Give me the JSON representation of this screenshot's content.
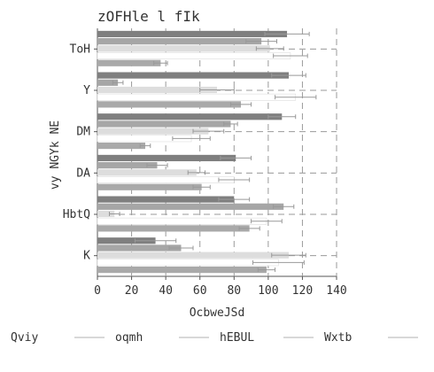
{
  "chart_data": {
    "type": "bar",
    "orientation": "horizontal",
    "title": "zOFHle l fIk",
    "xlabel": "OcbweJSd",
    "ylabel": "vy NGYk NE",
    "xlim": [
      0,
      140
    ],
    "xticks": [
      "0",
      "20",
      "40",
      "60",
      "80",
      "100",
      "120",
      "140"
    ],
    "grid": "vertical dashed",
    "legend_position": "bottom",
    "categories": [
      "ToH",
      "Y",
      "DM",
      "DA",
      "HbtQ",
      "K"
    ],
    "series": [
      {
        "name": "Qviy",
        "color": "#7f7f7f",
        "values": [
          111,
          112,
          108,
          81,
          80,
          34
        ],
        "errors": [
          13,
          10,
          8,
          9,
          9,
          12
        ]
      },
      {
        "name": "oqmh",
        "color": "#a6a6a6",
        "values": [
          96,
          12,
          78,
          35,
          109,
          49
        ],
        "errors": [
          9,
          3,
          4,
          6,
          6,
          7
        ]
      },
      {
        "name": "hEBUL",
        "color": "#dddddd",
        "values": [
          101,
          70,
          65,
          58,
          10,
          112
        ],
        "errors": [
          8,
          10,
          9,
          5,
          3,
          10
        ]
      },
      {
        "name": "Wxtb",
        "color": "#ffffff",
        "values": [
          113,
          116,
          55,
          80,
          99,
          106
        ],
        "errors": [
          10,
          12,
          11,
          9,
          9,
          15
        ]
      },
      {
        "name": "",
        "color": "#a9a9a9",
        "values": [
          37,
          84,
          28,
          61,
          89,
          99
        ],
        "errors": [
          4,
          6,
          3,
          5,
          6,
          5
        ]
      }
    ]
  }
}
